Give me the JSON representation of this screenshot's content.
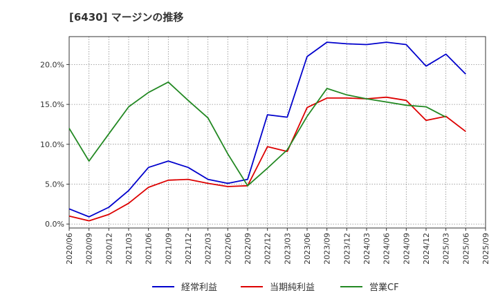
{
  "chart_data": {
    "type": "line",
    "title": "[6430]  マージンの推移",
    "xlabel": "",
    "ylabel": "",
    "ylim": [
      -0.5,
      23.5
    ],
    "yticks": [
      0,
      5,
      10,
      15,
      20
    ],
    "ytick_labels": [
      "0.0%",
      "5.0%",
      "10.0%",
      "15.0%",
      "20.0%"
    ],
    "x": [
      "2020/06",
      "2020/09",
      "2020/12",
      "2021/03",
      "2021/06",
      "2021/09",
      "2021/12",
      "2022/03",
      "2022/06",
      "2022/09",
      "2022/12",
      "2023/03",
      "2023/06",
      "2023/09",
      "2023/12",
      "2024/03",
      "2024/06",
      "2024/09",
      "2024/12",
      "2025/03",
      "2025/06",
      "2025/09"
    ],
    "grid": true,
    "legend_position": "bottom",
    "series": [
      {
        "name": "経常利益",
        "color": "#0000cc",
        "values": [
          1.9,
          0.9,
          2.1,
          4.2,
          7.1,
          7.9,
          7.1,
          5.6,
          5.1,
          5.6,
          13.7,
          13.4,
          21.0,
          22.8,
          22.6,
          22.5,
          22.8,
          22.5,
          19.8,
          21.3,
          18.8,
          null
        ]
      },
      {
        "name": "当期純利益",
        "color": "#dd0000",
        "values": [
          1.0,
          0.4,
          1.2,
          2.6,
          4.6,
          5.5,
          5.6,
          5.1,
          4.7,
          4.8,
          9.7,
          9.1,
          14.6,
          15.8,
          15.8,
          15.7,
          15.9,
          15.5,
          13.0,
          13.5,
          11.6,
          null
        ]
      },
      {
        "name": "営業CF",
        "color": "#228822",
        "values": [
          12.0,
          7.9,
          11.3,
          14.7,
          16.5,
          17.8,
          15.5,
          13.3,
          8.8,
          4.8,
          7.0,
          9.3,
          13.5,
          17.0,
          16.2,
          15.7,
          15.3,
          14.9,
          14.7,
          13.4,
          null,
          null
        ]
      }
    ]
  }
}
